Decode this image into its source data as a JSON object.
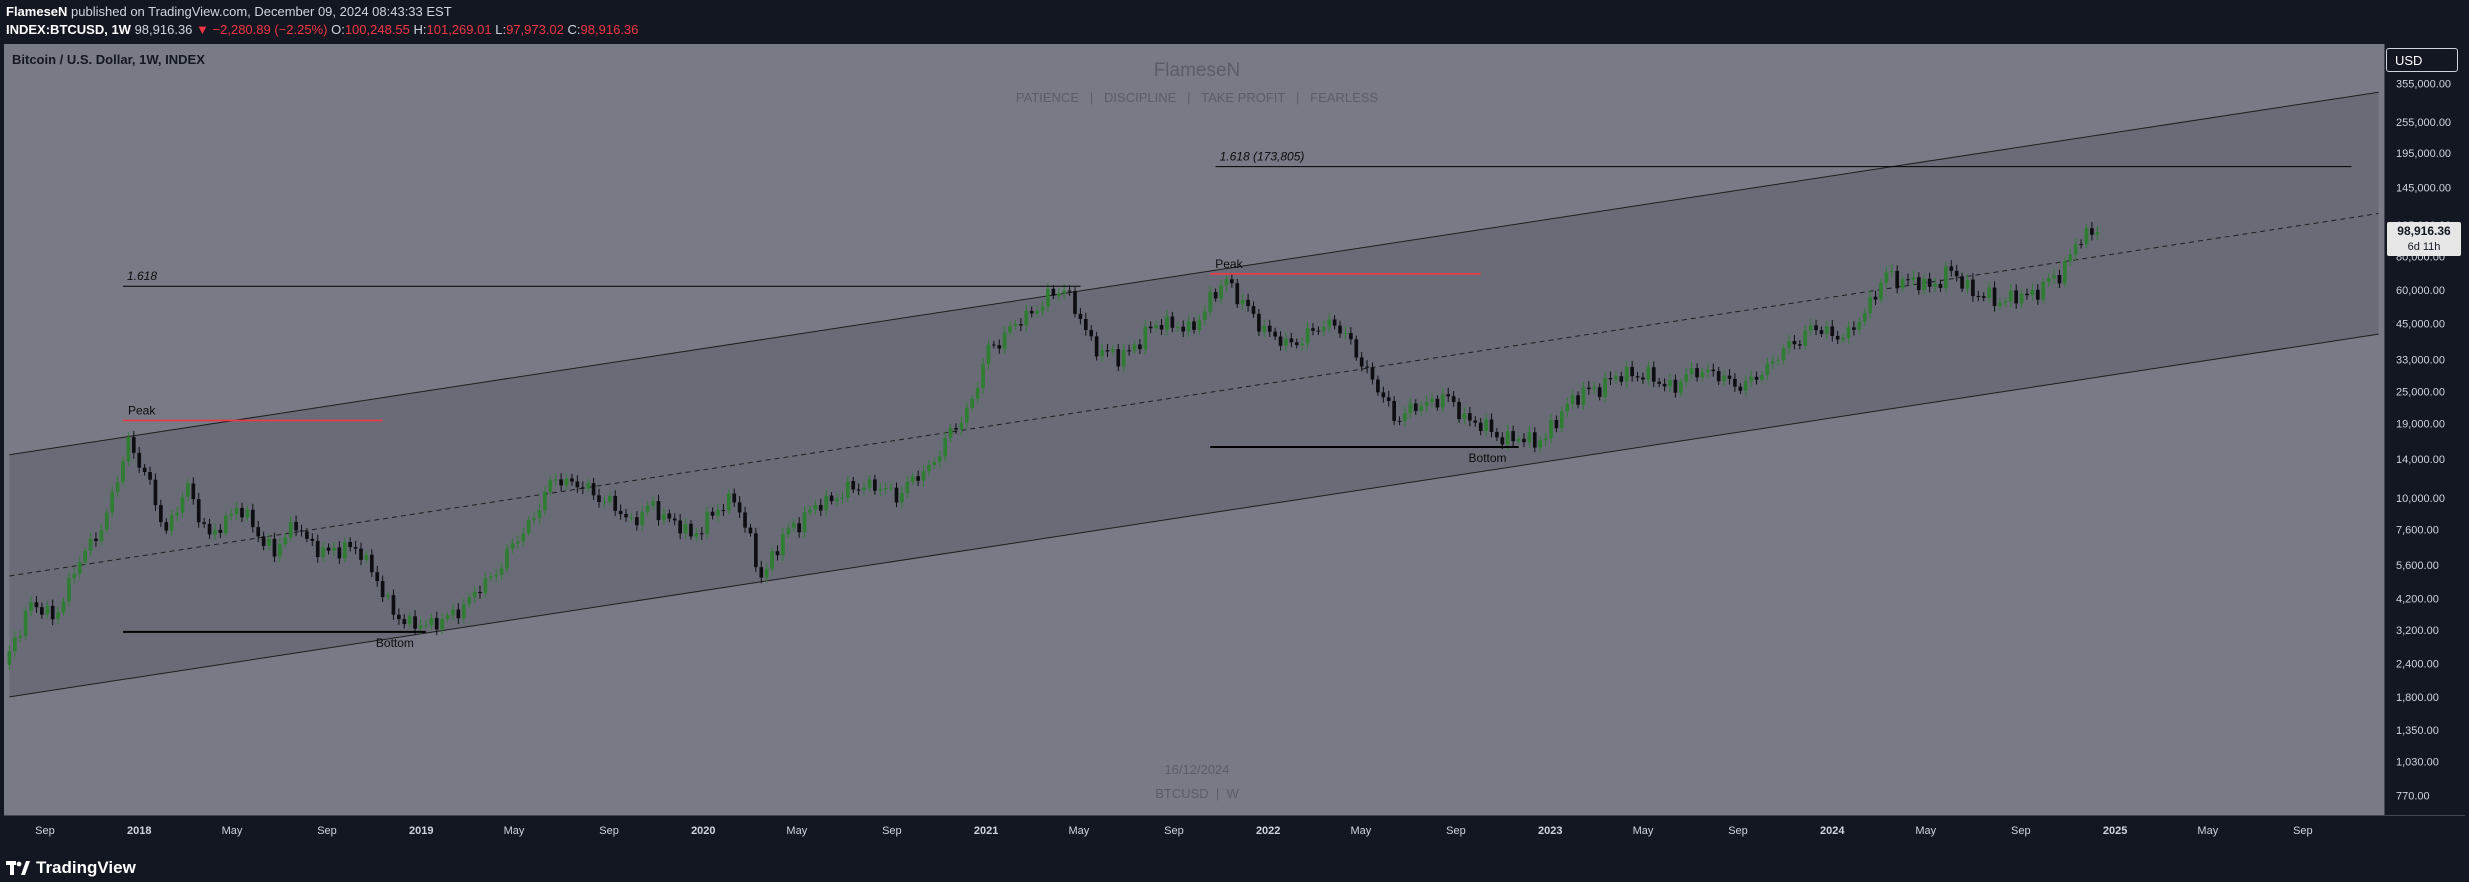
{
  "header": {
    "author": "FlameseN",
    "published_text": "published on TradingView.com, December 09, 2024 08:43:33 EST",
    "symbol": "INDEX:BTCUSD, 1W",
    "price": "98,916.36",
    "change": "▼ −2,280.89 (−2.25%)",
    "o_label": "O:",
    "o_value": "100,248.55",
    "h_label": "H:",
    "h_value": "101,269.01",
    "l_label": "L:",
    "l_value": "97,973.02",
    "c_label": "C:",
    "c_value": "98,916.36"
  },
  "chart": {
    "instrument_title": "Bitcoin / U.S. Dollar, 1W, INDEX",
    "watermark_title": "FlameseN",
    "watermark_subtitle": "PATIENCE   |   DISCIPLINE   |   TAKE PROFIT   |   FEARLESS",
    "bottom_date": "16/12/2024",
    "bottom_symbol": "BTCUSD  |  W",
    "currency_button": "USD",
    "last_price_label": "98,916.36",
    "countdown_label": "6d 11h"
  },
  "footer": {
    "brand": "TradingView"
  },
  "colors": {
    "background": "#787b86",
    "up": "#2e7d32",
    "down": "#0e0e12",
    "channel_fill": "#5d606b",
    "red_level": "#f23645",
    "axis_text": "#d1d4dc"
  },
  "chart_data": {
    "type": "candlestick",
    "title": "Bitcoin / U.S. Dollar, 1W, INDEX",
    "scale": "log",
    "ylim": [
      650,
      500000
    ],
    "y_ticks": [
      770,
      1030,
      1350,
      1800,
      2400,
      3200,
      4200,
      5600,
      7600,
      10000,
      14000,
      19000,
      25000,
      33000,
      45000,
      60000,
      80000,
      105000,
      145000,
      195000,
      255000,
      355000
    ],
    "y_tick_labels": [
      "770.00",
      "1,030.00",
      "1,350.00",
      "1,800.00",
      "2,400.00",
      "3,200.00",
      "4,200.00",
      "5,600.00",
      "7,600.00",
      "10,000.00",
      "14,000.00",
      "19,000.00",
      "25,000.00",
      "33,000.00",
      "45,000.00",
      "60,000.00",
      "80,000.00",
      "105,000.00",
      "145,000.00",
      "195,000.00",
      "255,000.00",
      "355,000.00"
    ],
    "x_range": [
      "2017-07-10",
      "2025-12-15"
    ],
    "x_ticks": [
      {
        "date": "2017-09-01",
        "label": "Sep",
        "bold": false
      },
      {
        "date": "2018-01-01",
        "label": "2018",
        "bold": true
      },
      {
        "date": "2018-05-01",
        "label": "May",
        "bold": false
      },
      {
        "date": "2018-09-01",
        "label": "Sep",
        "bold": false
      },
      {
        "date": "2019-01-01",
        "label": "2019",
        "bold": true
      },
      {
        "date": "2019-05-01",
        "label": "May",
        "bold": false
      },
      {
        "date": "2019-09-01",
        "label": "Sep",
        "bold": false
      },
      {
        "date": "2020-01-01",
        "label": "2020",
        "bold": true
      },
      {
        "date": "2020-05-01",
        "label": "May",
        "bold": false
      },
      {
        "date": "2020-09-01",
        "label": "Sep",
        "bold": false
      },
      {
        "date": "2021-01-01",
        "label": "2021",
        "bold": true
      },
      {
        "date": "2021-05-01",
        "label": "May",
        "bold": false
      },
      {
        "date": "2021-09-01",
        "label": "Sep",
        "bold": false
      },
      {
        "date": "2022-01-01",
        "label": "2022",
        "bold": true
      },
      {
        "date": "2022-05-01",
        "label": "May",
        "bold": false
      },
      {
        "date": "2022-09-01",
        "label": "Sep",
        "bold": false
      },
      {
        "date": "2023-01-01",
        "label": "2023",
        "bold": true
      },
      {
        "date": "2023-05-01",
        "label": "May",
        "bold": false
      },
      {
        "date": "2023-09-01",
        "label": "Sep",
        "bold": false
      },
      {
        "date": "2024-01-01",
        "label": "2024",
        "bold": true
      },
      {
        "date": "2024-05-01",
        "label": "May",
        "bold": false
      },
      {
        "date": "2024-09-01",
        "label": "Sep",
        "bold": false
      },
      {
        "date": "2025-01-01",
        "label": "2025",
        "bold": true
      },
      {
        "date": "2025-05-01",
        "label": "May",
        "bold": false
      },
      {
        "date": "2025-09-01",
        "label": "Sep",
        "bold": false
      }
    ],
    "price_path": [
      [
        "2017-07-10",
        2300
      ],
      [
        "2017-08-14",
        4100
      ],
      [
        "2017-09-11",
        3500
      ],
      [
        "2017-10-16",
        5800
      ],
      [
        "2017-11-20",
        8500
      ],
      [
        "2017-12-18",
        16500
      ],
      [
        "2018-01-15",
        11000
      ],
      [
        "2018-02-05",
        7500
      ],
      [
        "2018-03-05",
        11000
      ],
      [
        "2018-04-02",
        7000
      ],
      [
        "2018-05-07",
        9300
      ],
      [
        "2018-06-25",
        6200
      ],
      [
        "2018-07-23",
        8200
      ],
      [
        "2018-08-13",
        6400
      ],
      [
        "2018-10-15",
        6400
      ],
      [
        "2018-11-19",
        4000
      ],
      [
        "2018-12-17",
        3300
      ],
      [
        "2019-02-04",
        3500
      ],
      [
        "2019-04-01",
        5000
      ],
      [
        "2019-05-27",
        8600
      ],
      [
        "2019-06-24",
        12000
      ],
      [
        "2019-08-12",
        10500
      ],
      [
        "2019-09-30",
        8200
      ],
      [
        "2019-10-28",
        9300
      ],
      [
        "2019-12-16",
        7200
      ],
      [
        "2020-02-10",
        10200
      ],
      [
        "2020-03-16",
        5100
      ],
      [
        "2020-04-20",
        7600
      ],
      [
        "2020-06-01",
        9500
      ],
      [
        "2020-07-27",
        11300
      ],
      [
        "2020-09-07",
        10300
      ],
      [
        "2020-10-19",
        13000
      ],
      [
        "2020-12-14",
        23000
      ],
      [
        "2021-01-04",
        36000
      ],
      [
        "2021-02-22",
        48000
      ],
      [
        "2021-04-12",
        62000
      ],
      [
        "2021-05-17",
        38000
      ],
      [
        "2021-06-21",
        33000
      ],
      [
        "2021-08-16",
        46000
      ],
      [
        "2021-09-20",
        42000
      ],
      [
        "2021-11-08",
        66000
      ],
      [
        "2021-12-13",
        47000
      ],
      [
        "2022-01-24",
        37000
      ],
      [
        "2022-03-28",
        46000
      ],
      [
        "2022-05-09",
        30000
      ],
      [
        "2022-06-13",
        20000
      ],
      [
        "2022-08-15",
        24000
      ],
      [
        "2022-09-19",
        19500
      ],
      [
        "2022-11-07",
        16500
      ],
      [
        "2022-12-26",
        16600
      ],
      [
        "2023-01-23",
        22800
      ],
      [
        "2023-03-20",
        27500
      ],
      [
        "2023-04-17",
        29500
      ],
      [
        "2023-06-12",
        26000
      ],
      [
        "2023-07-10",
        30500
      ],
      [
        "2023-09-11",
        26000
      ],
      [
        "2023-10-23",
        34000
      ],
      [
        "2023-12-04",
        43000
      ],
      [
        "2024-01-22",
        40000
      ],
      [
        "2024-03-11",
        68000
      ],
      [
        "2024-05-06",
        62000
      ],
      [
        "2024-06-03",
        70000
      ],
      [
        "2024-07-08",
        57000
      ],
      [
        "2024-08-05",
        55000
      ],
      [
        "2024-09-09",
        57000
      ],
      [
        "2024-10-21",
        68000
      ],
      [
        "2024-11-11",
        90000
      ],
      [
        "2024-12-09",
        98916
      ]
    ],
    "last_price": 98916.36,
    "channel": {
      "lower": [
        [
          "2017-07-17",
          1800
        ],
        [
          "2025-12-08",
          41000
        ]
      ],
      "upper": [
        [
          "2017-07-17",
          14500
        ],
        [
          "2025-12-08",
          330000
        ]
      ],
      "mid": [
        [
          "2017-07-17",
          5100
        ],
        [
          "2025-12-08",
          116000
        ]
      ]
    },
    "annotations": [
      {
        "type": "hline",
        "label": "1.618",
        "from": "2017-12-11",
        "to": "2021-05-03",
        "price": 62000,
        "color": "#000000"
      },
      {
        "type": "hline",
        "label": "1.618 (173,805)",
        "from": "2021-10-25",
        "to": "2025-11-03",
        "price": 173805,
        "color": "#000000"
      },
      {
        "type": "hline",
        "label": "Peak",
        "from": "2017-12-11",
        "to": "2018-11-12",
        "price": 19500,
        "color": "#f23645"
      },
      {
        "type": "hline",
        "label": "Peak",
        "from": "2021-10-18",
        "to": "2022-10-03",
        "price": 69000,
        "color": "#f23645"
      },
      {
        "type": "hline",
        "label": "Bottom",
        "from": "2017-12-11",
        "to": "2019-01-07",
        "price": 3150,
        "color": "#000000"
      },
      {
        "type": "hline",
        "label": "Bottom",
        "from": "2021-10-18",
        "to": "2022-11-21",
        "price": 15500,
        "color": "#000000"
      }
    ]
  }
}
